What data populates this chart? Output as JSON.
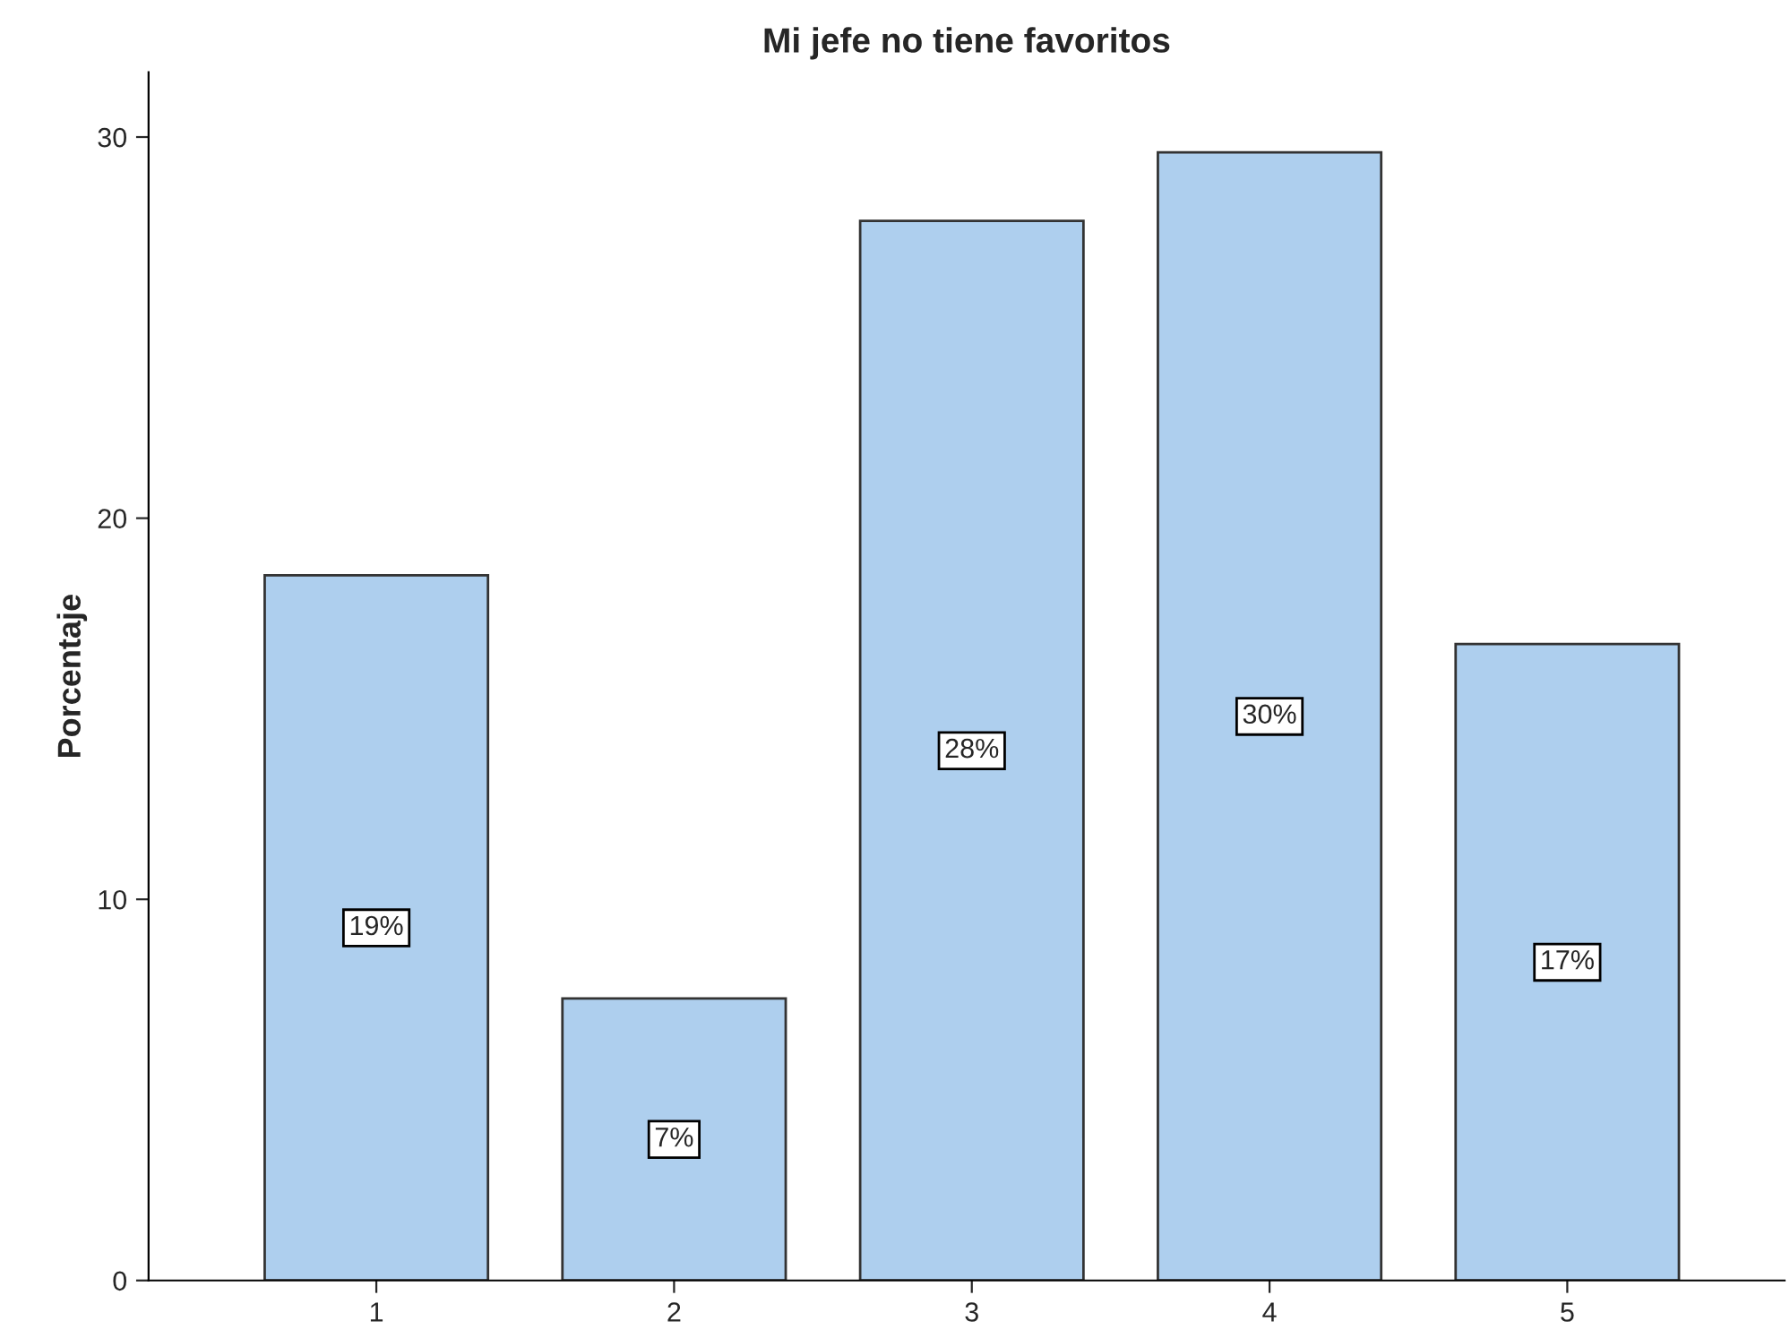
{
  "chart_data": {
    "type": "bar",
    "title": "Mi jefe no tiene favoritos",
    "ylabel": "Porcentaje",
    "categories": [
      "1",
      "2",
      "3",
      "4",
      "5"
    ],
    "values": [
      18.5,
      7.4,
      27.8,
      29.6,
      16.7
    ],
    "value_labels": [
      "19%",
      "7%",
      "28%",
      "30%",
      "17%"
    ],
    "color": "#aecfee",
    "ylim": [
      0,
      31.7
    ],
    "yticks": [
      0,
      10,
      20,
      30
    ],
    "grid": false,
    "legend": false
  }
}
